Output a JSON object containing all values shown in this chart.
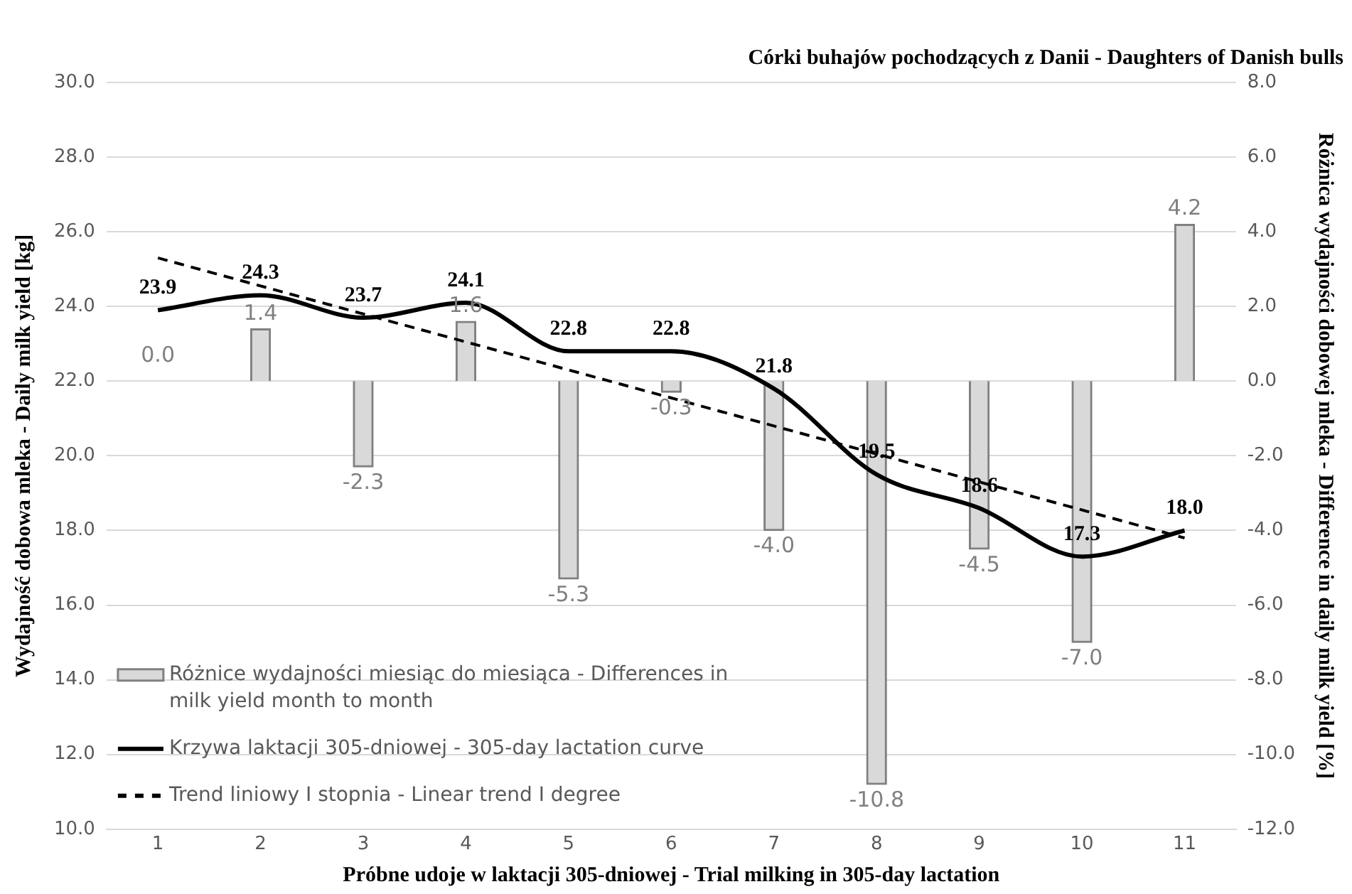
{
  "chart_data": {
    "type": "bar",
    "title": "Córki buhajów pochodzących z Danii - Daughters of Danish bulls",
    "xlabel": "Próbne udoje w laktacji 305-dniowej - Trial milking in 305-day lactation",
    "ylabel": "Wydajność dobowa mleka - Daily milk yield [kg]",
    "y2label": "Różnica wydajności dobowej mleka - Difference in daily milk yield [%]",
    "x": [
      1,
      2,
      3,
      4,
      5,
      6,
      7,
      8,
      9,
      10,
      11
    ],
    "xlim": [
      0.5,
      11.5
    ],
    "xticks": [
      1,
      2,
      3,
      4,
      5,
      6,
      7,
      8,
      9,
      10,
      11
    ],
    "ylim": [
      10,
      30
    ],
    "yticks": [
      {
        "value": 10,
        "label": "10.0"
      },
      {
        "value": 12,
        "label": "12.0"
      },
      {
        "value": 14,
        "label": "14.0"
      },
      {
        "value": 16,
        "label": "16.0"
      },
      {
        "value": 18,
        "label": "18.0"
      },
      {
        "value": 20,
        "label": "20.0"
      },
      {
        "value": 22,
        "label": "22.0"
      },
      {
        "value": 24,
        "label": "24.0"
      },
      {
        "value": 26,
        "label": "26.0"
      },
      {
        "value": 28,
        "label": "28.0"
      },
      {
        "value": 30,
        "label": "30.0"
      }
    ],
    "y2lim": [
      -12,
      8
    ],
    "y2ticks": [
      {
        "value": -12,
        "label": "-12.0"
      },
      {
        "value": -10,
        "label": "-10.0"
      },
      {
        "value": -8,
        "label": "-8.0"
      },
      {
        "value": -6,
        "label": "-6.0"
      },
      {
        "value": -4,
        "label": "-4.0"
      },
      {
        "value": -2,
        "label": "-2.0"
      },
      {
        "value": 0,
        "label": "0.0"
      },
      {
        "value": 2,
        "label": "2.0"
      },
      {
        "value": 4,
        "label": "4.0"
      },
      {
        "value": 6,
        "label": "6.0"
      },
      {
        "value": 8,
        "label": "8.0"
      }
    ],
    "series": [
      {
        "axis": "y2",
        "name": "Różnice wydajności miesiąc do miesiąca - Differences in milk yield month to month",
        "color": "#d9d9d9",
        "values": [
          0.0,
          1.4,
          -2.3,
          1.6,
          -5.3,
          -0.3,
          -4.0,
          -10.8,
          -4.5,
          -7.0,
          4.2
        ],
        "value_labels": [
          "0.0",
          "1.4",
          "-2.3",
          "1.6",
          "-5.3",
          "-0.3",
          "-4.0",
          "-10.8",
          "-4.5",
          "-7.0",
          "4.2"
        ]
      },
      {
        "type": "line",
        "name": "Krzywa laktacji 305-dniowej - 305-day lactation curve",
        "color": "#000000",
        "line_style": "solid",
        "values": [
          23.9,
          24.3,
          23.7,
          24.1,
          22.8,
          22.8,
          21.8,
          19.5,
          18.6,
          17.3,
          18.0
        ],
        "value_labels": [
          "23.9",
          "24.3",
          "23.7",
          "24.1",
          "22.8",
          "22.8",
          "21.8",
          "19.5",
          "18.6",
          "17.3",
          "18.0"
        ]
      },
      {
        "type": "line",
        "name": "Trend liniowy I stopnia - Linear trend I degree",
        "color": "#000000",
        "line_style": "dashed",
        "x": [
          1,
          11
        ],
        "values": [
          25.3,
          17.8
        ]
      }
    ],
    "grid": "y",
    "legend": "bottom left",
    "marker": "none"
  }
}
